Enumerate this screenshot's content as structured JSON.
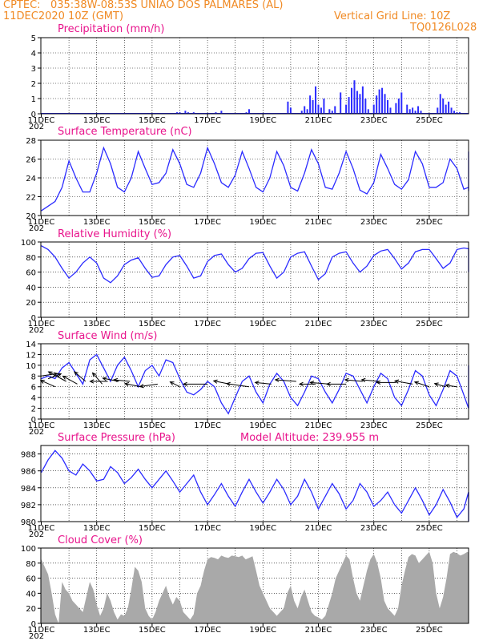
{
  "header": {
    "source": "CPTEC:",
    "location": "035:38W-08:53S  UNIAO DOS PALMARES (AL)",
    "run_time": "11DEC2020 10Z (GMT)",
    "grid_note": "Vertical Grid Line: 10Z",
    "model_code": "TQ0126L028"
  },
  "colors": {
    "line": "#2b2bff",
    "bar": "#2b2bff",
    "cloud": "#a9a9a9",
    "title": "#e8148c",
    "header": "#f08a24",
    "grid": "#000000"
  },
  "x_labels": [
    "11DEC",
    "13DEC",
    "15DEC",
    "17DEC",
    "19DEC",
    "21DEC",
    "23DEC",
    "25DEC"
  ],
  "x_year_stub": "202",
  "chart_data": [
    {
      "id": "precipitation",
      "type": "bar",
      "title": "Precipitation (mm/h)",
      "x_start": 0,
      "x_end": 15.17,
      "ylim": [
        0,
        5
      ],
      "yticks": [
        0,
        1,
        2,
        3,
        4,
        5
      ],
      "x": [
        4.9,
        5.0,
        5.2,
        5.3,
        5.5,
        6.3,
        6.5,
        7.4,
        7.5,
        8.9,
        9.0,
        9.4,
        9.5,
        9.6,
        9.7,
        9.8,
        9.9,
        10.0,
        10.1,
        10.2,
        10.4,
        10.5,
        10.6,
        10.8,
        11.0,
        11.1,
        11.2,
        11.3,
        11.4,
        11.5,
        11.6,
        11.7,
        11.8,
        12.0,
        12.1,
        12.2,
        12.3,
        12.4,
        12.5,
        12.6,
        12.8,
        12.9,
        13.0,
        13.2,
        13.3,
        13.4,
        13.5,
        13.6,
        13.7,
        14.3,
        14.4,
        14.5,
        14.6,
        14.7,
        14.8,
        14.9,
        15.0,
        15.1
      ],
      "values": [
        0.1,
        0.1,
        0.2,
        0.1,
        0.1,
        0.1,
        0.2,
        0.1,
        0.3,
        0.8,
        0.4,
        0.2,
        0.5,
        0.3,
        1.2,
        0.9,
        1.8,
        0.6,
        0.4,
        1.0,
        0.3,
        0.2,
        0.5,
        1.4,
        0.6,
        1.1,
        1.7,
        2.2,
        1.5,
        1.3,
        1.8,
        1.0,
        0.3,
        0.6,
        1.2,
        1.6,
        1.7,
        1.3,
        0.9,
        0.4,
        0.7,
        1.0,
        1.4,
        0.6,
        0.3,
        0.4,
        0.2,
        0.5,
        0.2,
        0.4,
        1.3,
        1.0,
        0.6,
        0.8,
        0.4,
        0.2,
        0.1,
        0.1
      ]
    },
    {
      "id": "temperature",
      "type": "line",
      "title": "Surface Temperature (nC)",
      "x_start": 0,
      "x_step": 0.25,
      "ylim": [
        20,
        28
      ],
      "yticks": [
        20,
        22,
        24,
        26,
        28
      ],
      "values": [
        20.5,
        21.0,
        21.5,
        23.0,
        25.8,
        24.0,
        22.5,
        22.5,
        24.5,
        27.2,
        25.5,
        23.0,
        22.5,
        24.0,
        26.8,
        25.0,
        23.3,
        23.5,
        24.5,
        27.0,
        25.5,
        23.3,
        23.0,
        24.5,
        27.2,
        25.5,
        23.5,
        23.0,
        24.3,
        26.8,
        25.0,
        23.0,
        22.5,
        24.0,
        26.8,
        25.3,
        23.0,
        22.6,
        24.5,
        27.0,
        25.5,
        23.0,
        22.8,
        24.5,
        26.8,
        25.0,
        22.7,
        22.3,
        23.5,
        26.5,
        25.0,
        23.3,
        22.8,
        23.8,
        26.8,
        25.5,
        23.0,
        23.0,
        23.5,
        26.0,
        25.0,
        22.8,
        23.0,
        24.0,
        26.5,
        25.7,
        23.3,
        22.6,
        23.0,
        24.2,
        23.5,
        23.0,
        23.2,
        24.3,
        24.0,
        23.0,
        22.8,
        23.5,
        24.3,
        23.4,
        23.4,
        24.5,
        25.2,
        24.5,
        23.2,
        23.8,
        25.0,
        24.4,
        23.4,
        24.3,
        24.7,
        24.0,
        23.4,
        24.8,
        26.6,
        25.7,
        24.0,
        24.4,
        26.8,
        25.5,
        24.0
      ]
    },
    {
      "id": "humidity",
      "type": "line",
      "title": "Relative Humidity (%)",
      "x_start": 0,
      "x_step": 0.25,
      "ylim": [
        0,
        100
      ],
      "yticks": [
        0,
        20,
        40,
        60,
        80,
        100
      ],
      "values": [
        95,
        90,
        80,
        65,
        52,
        60,
        72,
        80,
        72,
        52,
        46,
        55,
        70,
        76,
        79,
        65,
        53,
        55,
        70,
        80,
        82,
        68,
        52,
        55,
        74,
        82,
        84,
        70,
        60,
        65,
        78,
        85,
        86,
        68,
        52,
        60,
        80,
        85,
        87,
        68,
        50,
        58,
        80,
        85,
        87,
        72,
        60,
        68,
        82,
        88,
        90,
        78,
        64,
        72,
        87,
        90,
        90,
        78,
        65,
        72,
        90,
        92,
        91,
        80,
        74,
        78,
        88,
        90,
        89,
        80,
        75,
        82,
        90,
        92,
        91,
        82,
        78,
        84,
        88,
        86,
        82,
        74,
        68,
        78,
        86,
        88,
        84,
        73,
        68,
        74,
        88,
        90,
        80,
        64,
        62,
        76,
        90,
        92,
        78,
        60,
        60,
        80
      ]
    },
    {
      "id": "wind",
      "type": "line",
      "title": "Surface Wind (m/s)",
      "x_start": 0,
      "x_step": 0.25,
      "ylim": [
        0,
        14
      ],
      "yticks": [
        0,
        2,
        4,
        6,
        8,
        10,
        12,
        14
      ],
      "values": [
        7.5,
        8.0,
        7.5,
        9.5,
        10.5,
        8.5,
        6.5,
        11.0,
        12.0,
        9.5,
        7.0,
        10.0,
        11.5,
        9.0,
        6.0,
        9.0,
        10.0,
        8.0,
        11.0,
        10.5,
        7.5,
        5.0,
        4.5,
        5.5,
        7.0,
        6.0,
        3.0,
        1.0,
        4.0,
        7.0,
        8.0,
        5.0,
        3.0,
        6.5,
        8.5,
        7.0,
        4.0,
        2.5,
        5.0,
        8.0,
        7.5,
        5.0,
        3.0,
        5.5,
        8.5,
        8.0,
        5.5,
        3.0,
        6.0,
        8.5,
        7.5,
        4.0,
        2.5,
        5.5,
        9.0,
        8.0,
        4.5,
        2.5,
        5.5,
        9.0,
        8.0,
        4.5,
        2.0,
        5.5,
        9.5,
        9.0,
        5.5,
        3.0,
        5.5,
        9.0,
        7.5,
        4.0,
        2.5,
        5.5,
        9.0,
        7.0,
        4.5,
        3.0,
        5.0,
        8.5,
        7.5,
        4.0,
        2.5,
        5.0,
        9.0,
        7.5,
        4.0,
        3.0,
        5.5,
        8.5,
        6.0,
        3.5,
        3.0,
        6.0,
        9.0,
        7.5,
        4.5,
        4.0,
        7.5,
        10.0,
        7.0
      ]
    },
    {
      "id": "pressure",
      "type": "line",
      "title": "Surface Pressure (hPa)",
      "annotation": "Model Altitude: 239.955 m",
      "x_start": 0,
      "x_step": 0.25,
      "ylim": [
        980,
        989
      ],
      "yticks": [
        980,
        982,
        984,
        986,
        988
      ],
      "values": [
        985.8,
        987.3,
        988.4,
        987.5,
        986.0,
        985.5,
        986.8,
        986.0,
        984.8,
        985.0,
        986.5,
        985.8,
        984.5,
        985.2,
        986.2,
        985.0,
        984.0,
        985.0,
        986.0,
        984.8,
        983.5,
        984.5,
        985.5,
        983.5,
        982.0,
        983.2,
        984.5,
        983.0,
        981.8,
        983.5,
        985.0,
        983.5,
        982.2,
        983.5,
        985.0,
        983.8,
        982.0,
        983.0,
        985.0,
        983.5,
        981.5,
        983.0,
        984.5,
        983.3,
        981.5,
        982.5,
        984.5,
        983.5,
        981.8,
        982.5,
        983.5,
        982.0,
        981.0,
        982.5,
        984.0,
        982.5,
        980.8,
        982.0,
        983.8,
        982.3,
        980.5,
        981.5,
        983.5,
        982.0,
        980.5,
        981.5,
        983.0,
        982.0,
        980.5,
        981.5,
        982.5,
        981.0,
        980.0,
        981.0,
        982.8,
        981.5,
        980.0,
        981.0,
        982.5,
        981.0,
        979.5,
        980.5,
        982.0,
        981.0,
        979.3,
        980.5,
        981.8,
        980.5,
        979.2,
        980.2,
        981.8,
        980.5,
        979.0,
        980.0,
        981.5,
        980.2,
        979.0,
        980.5,
        982.5,
        981.0,
        979.5
      ]
    },
    {
      "id": "cloud",
      "type": "area",
      "title": "Cloud Cover (%)",
      "x_start": 0,
      "x_step": 0.125,
      "ylim": [
        0,
        100
      ],
      "yticks": [
        0,
        20,
        40,
        60,
        80,
        100
      ],
      "values": [
        85,
        75,
        65,
        40,
        12,
        0,
        55,
        45,
        40,
        30,
        25,
        20,
        15,
        35,
        55,
        45,
        25,
        10,
        20,
        40,
        30,
        15,
        5,
        12,
        10,
        20,
        45,
        75,
        70,
        55,
        20,
        10,
        5,
        15,
        30,
        40,
        50,
        35,
        25,
        35,
        30,
        15,
        10,
        5,
        12,
        40,
        50,
        70,
        85,
        88,
        87,
        85,
        90,
        88,
        87,
        90,
        89,
        88,
        90,
        85,
        87,
        89,
        70,
        50,
        40,
        30,
        20,
        15,
        10,
        15,
        20,
        40,
        50,
        30,
        20,
        35,
        45,
        30,
        15,
        10,
        8,
        5,
        10,
        25,
        40,
        60,
        70,
        80,
        90,
        85,
        60,
        40,
        30,
        50,
        70,
        85,
        92,
        80,
        60,
        30,
        20,
        15,
        10,
        20,
        50,
        70,
        88,
        92,
        90,
        80,
        85,
        90,
        95,
        80,
        40,
        20,
        35,
        60,
        92,
        95,
        93,
        90,
        92,
        95,
        94,
        90,
        95,
        93,
        92,
        94,
        95,
        90,
        93,
        95,
        92,
        90,
        88,
        93,
        95,
        92,
        95,
        93,
        90,
        95,
        92,
        85,
        70,
        85,
        95,
        90,
        60,
        40,
        60,
        85,
        95,
        90,
        80,
        60,
        45,
        70,
        85,
        92,
        88,
        70,
        55,
        45,
        70,
        90,
        95,
        85,
        60,
        40,
        55,
        80,
        90,
        85,
        60,
        40,
        50,
        85,
        92,
        90,
        75,
        55,
        45,
        65,
        90,
        95,
        92,
        80,
        60,
        55,
        80,
        95,
        92,
        85,
        70,
        60,
        80
      ]
    }
  ],
  "wind_vectors": [
    {
      "x": 0.0,
      "y": 8,
      "dx": 20,
      "dy": -3
    },
    {
      "x": 0.25,
      "y": 7.5,
      "dx": 16,
      "dy": -6
    },
    {
      "x": 0.5,
      "y": 6,
      "dx": -18,
      "dy": -8
    },
    {
      "x": 0.9,
      "y": 7,
      "dx": -22,
      "dy": -12
    },
    {
      "x": 1.3,
      "y": 6.5,
      "dx": -18,
      "dy": -10
    },
    {
      "x": 1.6,
      "y": 7,
      "dx": -14,
      "dy": -12
    },
    {
      "x": 2.2,
      "y": 6.5,
      "dx": -12,
      "dy": -14
    },
    {
      "x": 2.4,
      "y": 7,
      "dx": -22,
      "dy": 0
    },
    {
      "x": 2.8,
      "y": 7,
      "dx": -20,
      "dy": -4
    },
    {
      "x": 3.2,
      "y": 7,
      "dx": -20,
      "dy": -2
    },
    {
      "x": 3.6,
      "y": 6,
      "dx": -20,
      "dy": -4
    },
    {
      "x": 4.2,
      "y": 6.5,
      "dx": -22,
      "dy": 3
    },
    {
      "x": 5.0,
      "y": 6,
      "dx": -12,
      "dy": -6
    },
    {
      "x": 6.0,
      "y": 6.5,
      "dx": -30,
      "dy": 0
    },
    {
      "x": 6.8,
      "y": 6.5,
      "dx": -20,
      "dy": -4
    },
    {
      "x": 7.5,
      "y": 6,
      "dx": -28,
      "dy": -4
    },
    {
      "x": 8.3,
      "y": 6.5,
      "dx": -20,
      "dy": -2
    },
    {
      "x": 9.2,
      "y": 7,
      "dx": -26,
      "dy": -2
    },
    {
      "x": 9.9,
      "y": 6.5,
      "dx": -20,
      "dy": 0
    },
    {
      "x": 10.4,
      "y": 6.5,
      "dx": -24,
      "dy": -2
    },
    {
      "x": 11.0,
      "y": 6.5,
      "dx": -24,
      "dy": 0
    },
    {
      "x": 11.6,
      "y": 7,
      "dx": -22,
      "dy": -2
    },
    {
      "x": 12.2,
      "y": 7,
      "dx": -22,
      "dy": -2
    },
    {
      "x": 12.8,
      "y": 6.8,
      "dx": -24,
      "dy": 0
    },
    {
      "x": 13.4,
      "y": 6.5,
      "dx": -22,
      "dy": -4
    },
    {
      "x": 14.0,
      "y": 6,
      "dx": -18,
      "dy": -6
    },
    {
      "x": 14.6,
      "y": 6,
      "dx": -14,
      "dy": -4
    },
    {
      "x": 15.0,
      "y": 6,
      "dx": -14,
      "dy": -2
    }
  ]
}
